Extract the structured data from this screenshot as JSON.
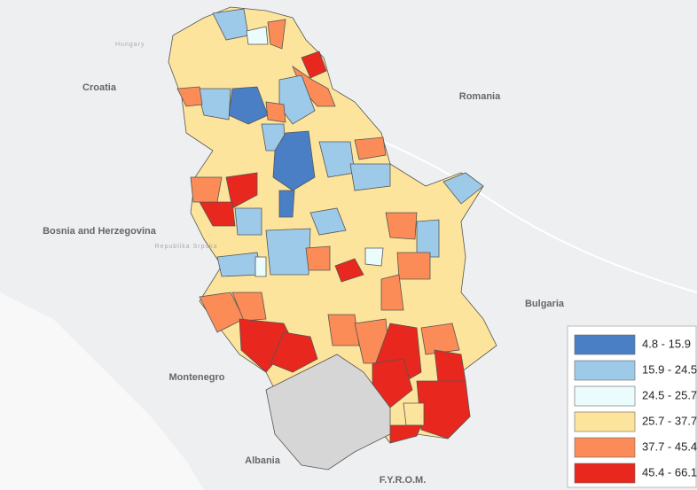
{
  "map": {
    "labels": [
      "Hungary",
      "Croatia",
      "Romania",
      "Bosnia and Herzegovina",
      "Republika Srpska",
      "Montenegro",
      "Bulgaria",
      "Albania",
      "F.Y.R.O.M."
    ],
    "legend": [
      {
        "label": "4.8 - 15.9",
        "color": "#4a7fc6"
      },
      {
        "label": "15.9 - 24.5",
        "color": "#9ecae9"
      },
      {
        "label": "24.5 - 25.7",
        "color": "#eafcfb"
      },
      {
        "label": "25.7 - 37.7",
        "color": "#fde49c"
      },
      {
        "label": "37.7 - 45.4",
        "color": "#fb8b57"
      },
      {
        "label": "45.4 - 66.1",
        "color": "#e8271f"
      }
    ]
  }
}
